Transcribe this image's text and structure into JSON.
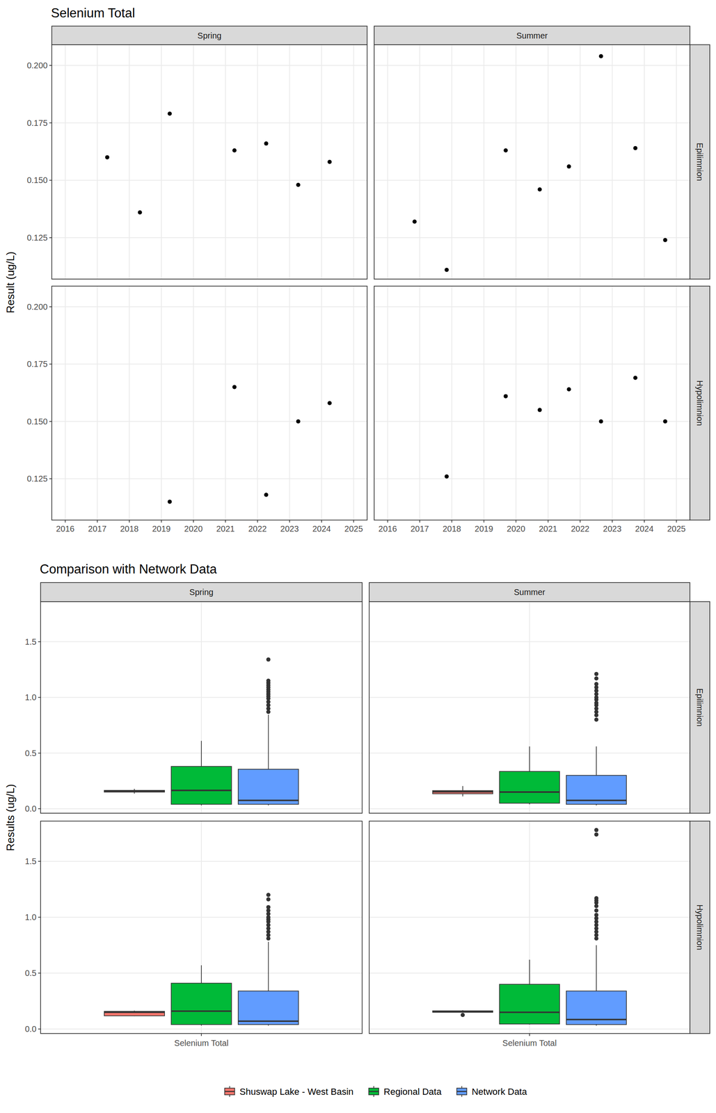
{
  "chart_data": [
    {
      "type": "scatter",
      "title": "Selenium Total",
      "y_label": "Result (ug/L)",
      "facet_columns": [
        "Spring",
        "Summer"
      ],
      "facet_rows": [
        "Epilimnion",
        "Hypolimnion"
      ],
      "xlim": [
        2015.58,
        2025.42
      ],
      "xticks": [
        2016,
        2017,
        2018,
        2019,
        2020,
        2021,
        2022,
        2023,
        2024,
        2025
      ],
      "ylim": [
        0.107,
        0.209
      ],
      "yticks": [
        0.125,
        {
          "value": 0.15,
          "label": "0.150"
        },
        0.175,
        {
          "value": 0.2,
          "label": "0.200"
        }
      ],
      "grid": true,
      "color": "#000000",
      "marker": "circle",
      "panels": [
        {
          "x": [
            2017.31,
            2018.33,
            2019.26,
            2021.28,
            2022.27,
            2023.27,
            2024.25
          ],
          "values": [
            0.16,
            0.136,
            0.179,
            0.163,
            0.166,
            0.148,
            0.158
          ]
        },
        {
          "x": [
            2016.84,
            2017.84,
            2019.68,
            2020.74,
            2021.65,
            2022.65,
            2023.72,
            2024.65
          ],
          "values": [
            0.132,
            0.111,
            0.163,
            0.146,
            0.156,
            0.204,
            0.164,
            0.124
          ]
        },
        {
          "x": [
            2019.26,
            2021.28,
            2022.27,
            2023.27,
            2024.25
          ],
          "values": [
            0.115,
            0.165,
            0.118,
            0.15,
            0.158
          ]
        },
        {
          "x": [
            2017.84,
            2019.68,
            2020.74,
            2021.65,
            2022.65,
            2023.72,
            2024.65
          ],
          "values": [
            0.126,
            0.161,
            0.155,
            0.164,
            0.15,
            0.169,
            0.15
          ]
        }
      ]
    },
    {
      "type": "box",
      "title": "Comparison with Network Data",
      "y_label": "Results (ug/L)",
      "categories": [
        "Selenium Total"
      ],
      "facet_columns": [
        "Spring",
        "Summer"
      ],
      "facet_rows": [
        "Epilimnion",
        "Hypolimnion"
      ],
      "ylim": [
        -0.04,
        1.86
      ],
      "yticks": [
        {
          "value": 0,
          "label": "0.0"
        },
        0.5,
        {
          "value": 1,
          "label": "1.0"
        },
        1.5
      ],
      "grid": true,
      "legend": "bottom",
      "series": [
        {
          "name": "Shuswap Lake - West Basin",
          "color": "#F8766D"
        },
        {
          "name": "Regional Data",
          "color": "#00BA38"
        },
        {
          "name": "Network Data",
          "color": "#619CFF"
        }
      ],
      "panels": [
        {
          "boxes": [
            {
              "whisker_low": 0.136,
              "q1": 0.15,
              "median": 0.16,
              "q3": 0.165,
              "whisker_high": 0.179,
              "outliers": []
            },
            {
              "whisker_low": 0.03,
              "q1": 0.04,
              "median": 0.165,
              "q3": 0.38,
              "whisker_high": 0.61,
              "outliers": []
            },
            {
              "whisker_low": 0.03,
              "q1": 0.04,
              "median": 0.075,
              "q3": 0.355,
              "whisker_high": 0.845,
              "outliers": [
                0.87,
                0.9,
                0.93,
                0.96,
                0.99,
                1.01,
                1.03,
                1.05,
                1.07,
                1.09,
                1.11,
                1.13,
                1.15,
                1.34
              ]
            }
          ]
        },
        {
          "boxes": [
            {
              "whisker_low": 0.111,
              "q1": 0.135,
              "median": 0.153,
              "q3": 0.163,
              "whisker_high": 0.204,
              "outliers": []
            },
            {
              "whisker_low": 0.04,
              "q1": 0.05,
              "median": 0.15,
              "q3": 0.335,
              "whisker_high": 0.56,
              "outliers": []
            },
            {
              "whisker_low": 0.03,
              "q1": 0.04,
              "median": 0.075,
              "q3": 0.3,
              "whisker_high": 0.56,
              "outliers": [
                0.8,
                0.84,
                0.87,
                0.9,
                0.93,
                0.95,
                0.98,
                1.0,
                1.03,
                1.06,
                1.09,
                1.12,
                1.17,
                1.21
              ]
            }
          ]
        },
        {
          "boxes": [
            {
              "whisker_low": 0.115,
              "q1": 0.118,
              "median": 0.15,
              "q3": 0.158,
              "whisker_high": 0.165,
              "outliers": []
            },
            {
              "whisker_low": 0.03,
              "q1": 0.04,
              "median": 0.16,
              "q3": 0.41,
              "whisker_high": 0.57,
              "outliers": []
            },
            {
              "whisker_low": 0.03,
              "q1": 0.04,
              "median": 0.07,
              "q3": 0.34,
              "whisker_high": 0.78,
              "outliers": [
                0.81,
                0.84,
                0.87,
                0.9,
                0.93,
                0.96,
                0.98,
                1.0,
                1.03,
                1.06,
                1.09,
                1.16,
                1.2
              ]
            }
          ]
        },
        {
          "boxes": [
            {
              "whisker_low": 0.15,
              "q1": 0.15,
              "median": 0.155,
              "q3": 0.1625,
              "whisker_high": 0.169,
              "outliers": [
                0.126
              ]
            },
            {
              "whisker_low": 0.04,
              "q1": 0.045,
              "median": 0.15,
              "q3": 0.4,
              "whisker_high": 0.62,
              "outliers": []
            },
            {
              "whisker_low": 0.03,
              "q1": 0.04,
              "median": 0.085,
              "q3": 0.34,
              "whisker_high": 0.75,
              "outliers": [
                0.81,
                0.84,
                0.87,
                0.9,
                0.93,
                0.96,
                0.99,
                1.02,
                1.06,
                1.1,
                1.13,
                1.15,
                1.17,
                1.74,
                1.78
              ]
            }
          ]
        }
      ]
    }
  ]
}
